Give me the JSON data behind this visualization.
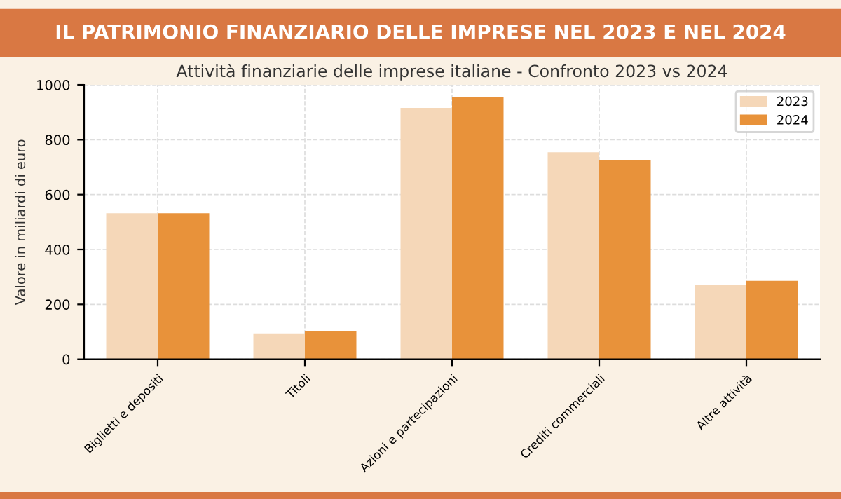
{
  "chart_data": {
    "type": "bar",
    "title": "IL PATRIMONIO FINANZIARIO DELLE IMPRESE NEL 2023 E NEL 2024",
    "subtitle": "Attività finanziarie delle imprese italiane - Confronto 2023 vs 2024",
    "ylabel": "Valore in miliardi di euro",
    "categories": [
      "Biglietti e depositi",
      "Titoli",
      "Azioni e partecipazioni",
      "Crediti commerciali",
      "Altre attività"
    ],
    "series": [
      {
        "name": "2023",
        "color": "#f5d7b8",
        "values": [
          532,
          94,
          916,
          754,
          271
        ]
      },
      {
        "name": "2024",
        "color": "#e8923a",
        "values": [
          532,
          102,
          957,
          726,
          286
        ]
      }
    ],
    "ylim": [
      0,
      1000
    ],
    "yticks": [
      0,
      200,
      400,
      600,
      800,
      1000
    ],
    "grid": true,
    "legend": "top right"
  }
}
